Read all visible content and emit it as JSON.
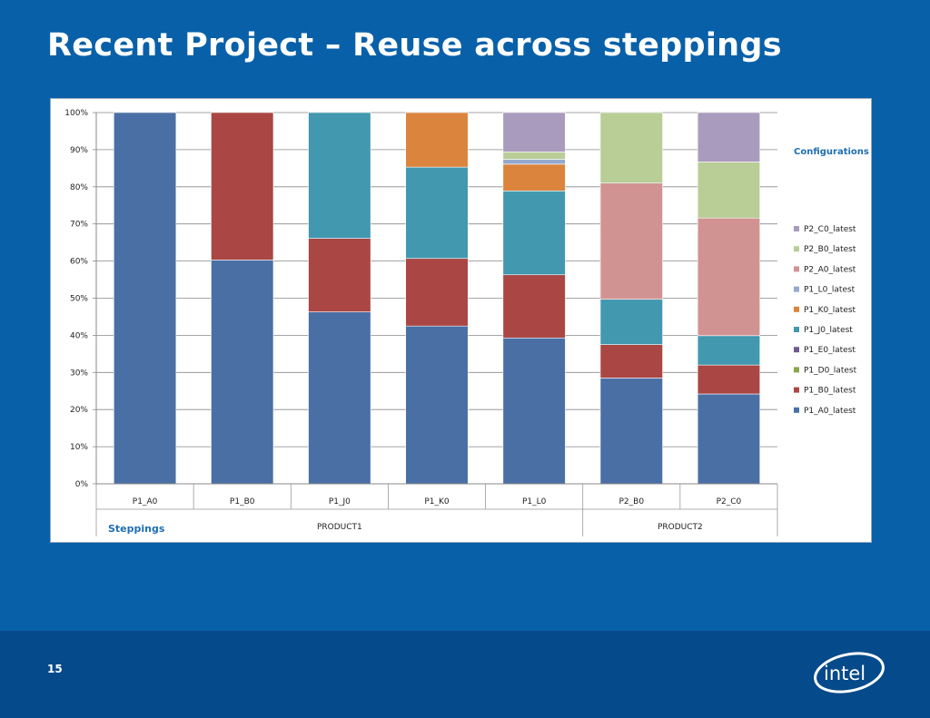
{
  "slide": {
    "title": "Recent Project – Reuse across steppings",
    "page_number": "15",
    "logo_text": "intel"
  },
  "chart_data": {
    "type": "bar",
    "stacked": true,
    "percent_stacked": true,
    "categories": [
      "P1_A0",
      "P1_B0",
      "P1_J0",
      "P1_K0",
      "P1_L0",
      "P2_B0",
      "P2_C0"
    ],
    "groups": [
      {
        "label": "PRODUCT1",
        "categories": [
          "P1_A0",
          "P1_B0",
          "P1_J0",
          "P1_K0",
          "P1_L0"
        ]
      },
      {
        "label": "PRODUCT2",
        "categories": [
          "P2_B0",
          "P2_C0"
        ]
      }
    ],
    "xlabel": "Steppings",
    "legend_title": "Configurations",
    "legend_position": "right",
    "yticks": [
      "0%",
      "10%",
      "20%",
      "30%",
      "40%",
      "50%",
      "60%",
      "70%",
      "80%",
      "90%",
      "100%"
    ],
    "ylim": [
      0,
      100
    ],
    "grid": true,
    "series": [
      {
        "name": "P1_A0_latest",
        "color": "#4A6FA5",
        "values": [
          100,
          60.3,
          46.3,
          42.5,
          39.3,
          28.5,
          24.2
        ]
      },
      {
        "name": "P1_B0_latest",
        "color": "#AA4643",
        "values": [
          0,
          39.7,
          19.8,
          18.2,
          17.0,
          9.0,
          7.8
        ]
      },
      {
        "name": "P1_D0_latest",
        "color": "#89A54E",
        "values": [
          0,
          0,
          0,
          0,
          0,
          0,
          0
        ]
      },
      {
        "name": "P1_E0_latest",
        "color": "#71588F",
        "values": [
          0,
          0,
          0,
          0,
          0,
          0,
          0
        ]
      },
      {
        "name": "P1_J0_latest",
        "color": "#4198AF",
        "values": [
          0,
          0,
          33.9,
          24.6,
          22.6,
          12.2,
          7.9
        ]
      },
      {
        "name": "P1_K0_latest",
        "color": "#DB843D",
        "values": [
          0,
          0,
          0,
          14.7,
          7.2,
          0,
          0
        ]
      },
      {
        "name": "P1_L0_latest",
        "color": "#93A9CF",
        "values": [
          0,
          0,
          0,
          0,
          1.3,
          0,
          0
        ]
      },
      {
        "name": "P2_A0_latest",
        "color": "#D19392",
        "values": [
          0,
          0,
          0,
          0,
          0,
          31.3,
          31.7
        ]
      },
      {
        "name": "P2_B0_latest",
        "color": "#B9CD96",
        "values": [
          0,
          0,
          0,
          0,
          2.0,
          19.0,
          15.1
        ]
      },
      {
        "name": "P2_C0_latest",
        "color": "#A99BBD",
        "values": [
          0,
          0,
          0,
          0,
          10.6,
          0,
          13.3
        ]
      }
    ]
  }
}
